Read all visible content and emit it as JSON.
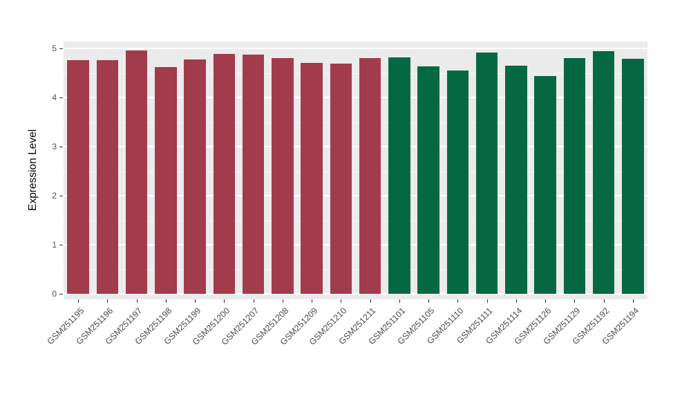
{
  "figure": {
    "background": "#FFFFFF"
  },
  "chart_data": {
    "type": "bar",
    "title": "",
    "xlabel": "",
    "ylabel": "Expression Level",
    "ylim": [
      0,
      5
    ],
    "yticks": [
      0,
      1,
      2,
      3,
      4,
      5
    ],
    "minor_yticks": [
      0.5,
      1.5,
      2.5,
      3.5,
      4.5
    ],
    "grid": true,
    "legend": "none",
    "panel_background": "#EBEBEB",
    "major_gridline_color": "#FFFFFF",
    "minor_gridline_color": "rgba(255,255,255,0.6)",
    "tick_label_color": "#4D4D4D",
    "tick_mark_color": "#333333",
    "group_colors": {
      "group1": "#A23B4C",
      "group2": "#046942"
    },
    "bars": [
      {
        "label": "GSM251195",
        "value": 4.76,
        "group": "group1"
      },
      {
        "label": "GSM251196",
        "value": 4.76,
        "group": "group1"
      },
      {
        "label": "GSM251197",
        "value": 4.96,
        "group": "group1"
      },
      {
        "label": "GSM251198",
        "value": 4.62,
        "group": "group1"
      },
      {
        "label": "GSM251199",
        "value": 4.77,
        "group": "group1"
      },
      {
        "label": "GSM251200",
        "value": 4.89,
        "group": "group1"
      },
      {
        "label": "GSM251207",
        "value": 4.87,
        "group": "group1"
      },
      {
        "label": "GSM251208",
        "value": 4.8,
        "group": "group1"
      },
      {
        "label": "GSM251209",
        "value": 4.7,
        "group": "group1"
      },
      {
        "label": "GSM251210",
        "value": 4.69,
        "group": "group1"
      },
      {
        "label": "GSM251211",
        "value": 4.8,
        "group": "group1"
      },
      {
        "label": "GSM251101",
        "value": 4.82,
        "group": "group2"
      },
      {
        "label": "GSM251105",
        "value": 4.63,
        "group": "group2"
      },
      {
        "label": "GSM251110",
        "value": 4.55,
        "group": "group2"
      },
      {
        "label": "GSM251111",
        "value": 4.91,
        "group": "group2"
      },
      {
        "label": "GSM251114",
        "value": 4.65,
        "group": "group2"
      },
      {
        "label": "GSM251126",
        "value": 4.44,
        "group": "group2"
      },
      {
        "label": "GSM251129",
        "value": 4.8,
        "group": "group2"
      },
      {
        "label": "GSM251192",
        "value": 4.94,
        "group": "group2"
      },
      {
        "label": "GSM251194",
        "value": 4.79,
        "group": "group2"
      }
    ]
  }
}
